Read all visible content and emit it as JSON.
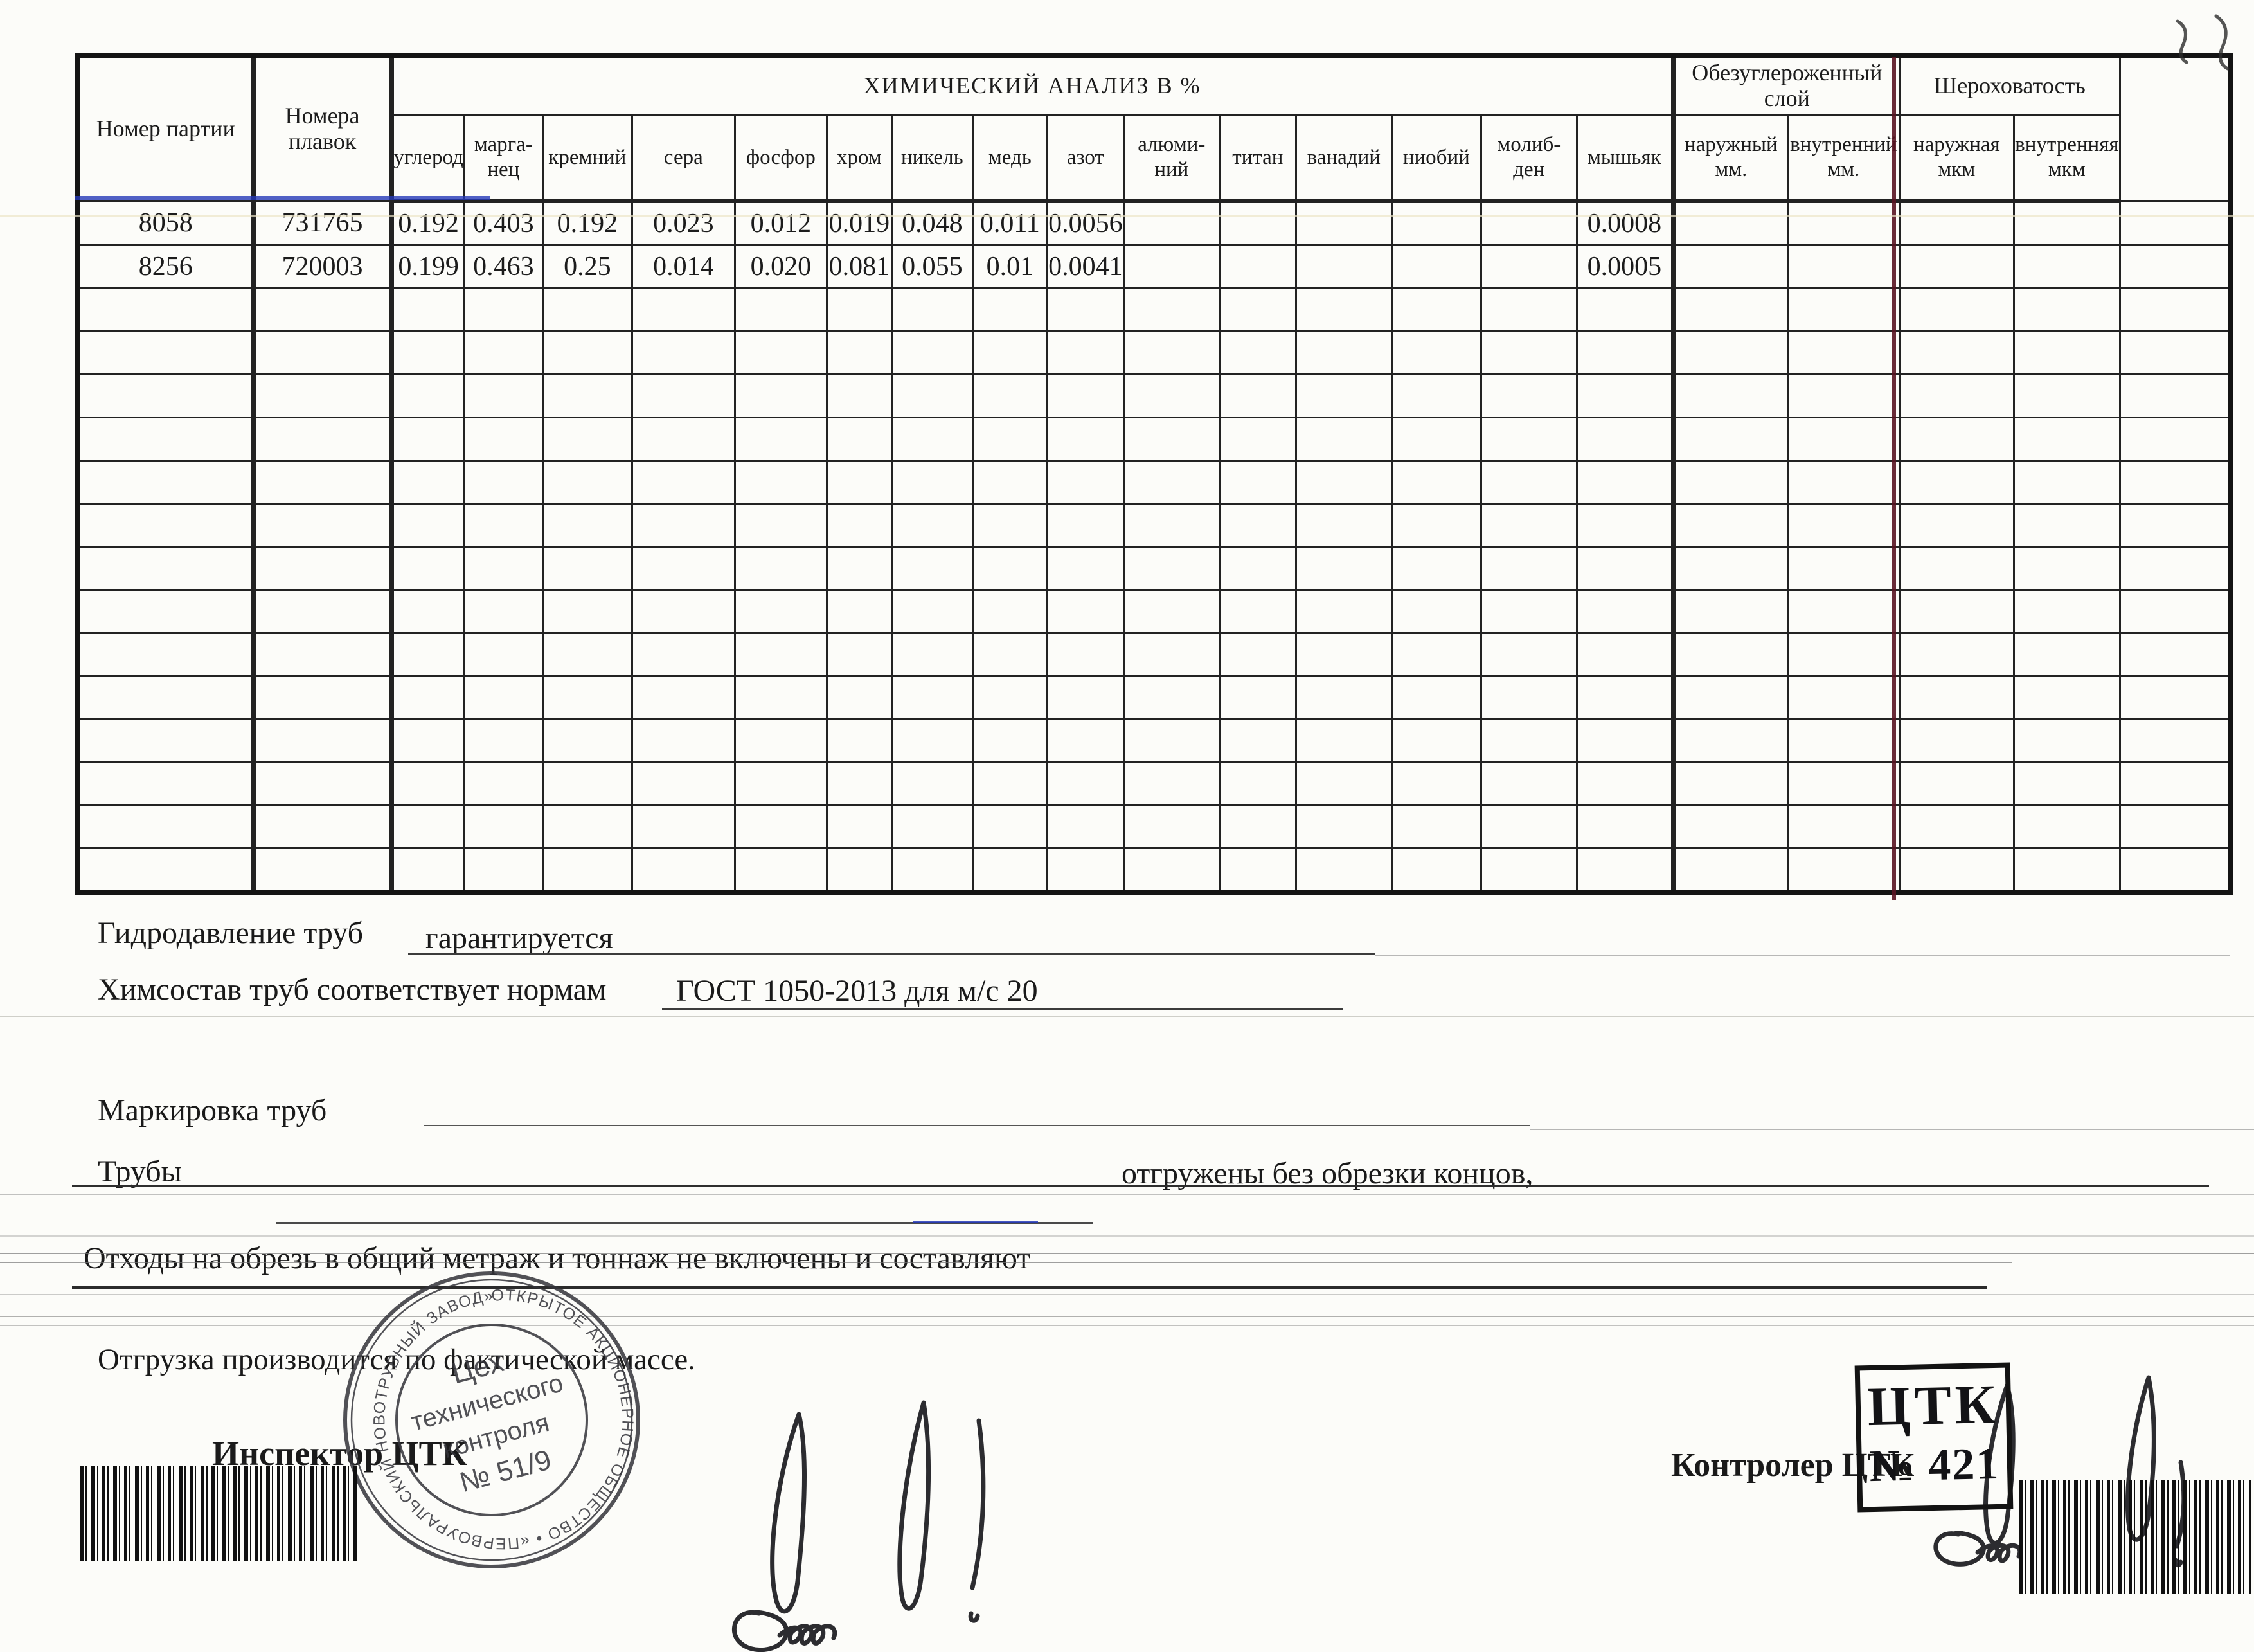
{
  "table": {
    "title": "ХИМИЧЕСКИЙ АНАЛИЗ В %",
    "col_batch": "Номер партии",
    "col_heats": "Номера плавок",
    "chem_columns": [
      "углерод",
      "марга-нец",
      "кремний",
      "сера",
      "фосфор",
      "хром",
      "никель",
      "медь",
      "азот",
      "алюми-ний",
      "титан",
      "ванадий",
      "ниобий",
      "молиб-ден",
      "мышьяк"
    ],
    "group_decarb": {
      "title": "Обезуглероженный слой",
      "sub": [
        "наружный мм.",
        "внутренний мм."
      ]
    },
    "group_rough": {
      "title": "Шероховатость",
      "sub": [
        "наружная мкм",
        "внутренняя мкм"
      ]
    },
    "rows": [
      {
        "cells": [
          "8058",
          "731765",
          "0.192",
          "0.403",
          "0.192",
          "0.023",
          "0.012",
          "0.019",
          "0.048",
          "0.011",
          "0.0056",
          "",
          "",
          "",
          "",
          "",
          "0.0008",
          "",
          "",
          "",
          "",
          ""
        ]
      },
      {
        "cells": [
          "8256",
          "720003",
          "0.199",
          "0.463",
          "0.25",
          "0.014",
          "0.020",
          "0.081",
          "0.055",
          "0.01",
          "0.0041",
          "",
          "",
          "",
          "",
          "",
          "0.0005",
          "",
          "",
          "",
          "",
          ""
        ]
      }
    ],
    "empty_row_count": 14
  },
  "notes": {
    "hydro_label": "Гидродавление труб",
    "hydro_value": "гарантируется",
    "chem_label": "Химсостав труб соответствует нормам",
    "chem_value": "ГОСТ 1050-2013 для м/с 20",
    "marking_label": "Маркировка труб",
    "pipes_label": "Трубы",
    "pipes_value": "отгружены без обрезки концов,",
    "waste_line": "Отходы на обрезь в общий метраж и тоннаж не включены и составляют",
    "shipping_line": "Отгрузка производится по фактической массе."
  },
  "signatures": {
    "inspector_label": "Инспектор ЦТК",
    "controller_label": "Контролер ЦТК",
    "round_stamp": {
      "ring_text": "ОТКРЫТОЕ АКЦИОНЕРНОЕ ОБЩЕСТВО • «ПЕРВОУРАЛЬСКИЙ НОВОТРУБНЫЙ ЗАВОД» •",
      "line1": "Цех",
      "line2": "технического",
      "line3": "контроля",
      "line4": "№ 51/9"
    },
    "rect_stamp": {
      "line1": "ЦТК",
      "line2": "№ 421"
    }
  },
  "colors": {
    "ink": "#1a1a1a",
    "maroon_line": "#5a1422",
    "blue_pen": "#2438b8"
  }
}
